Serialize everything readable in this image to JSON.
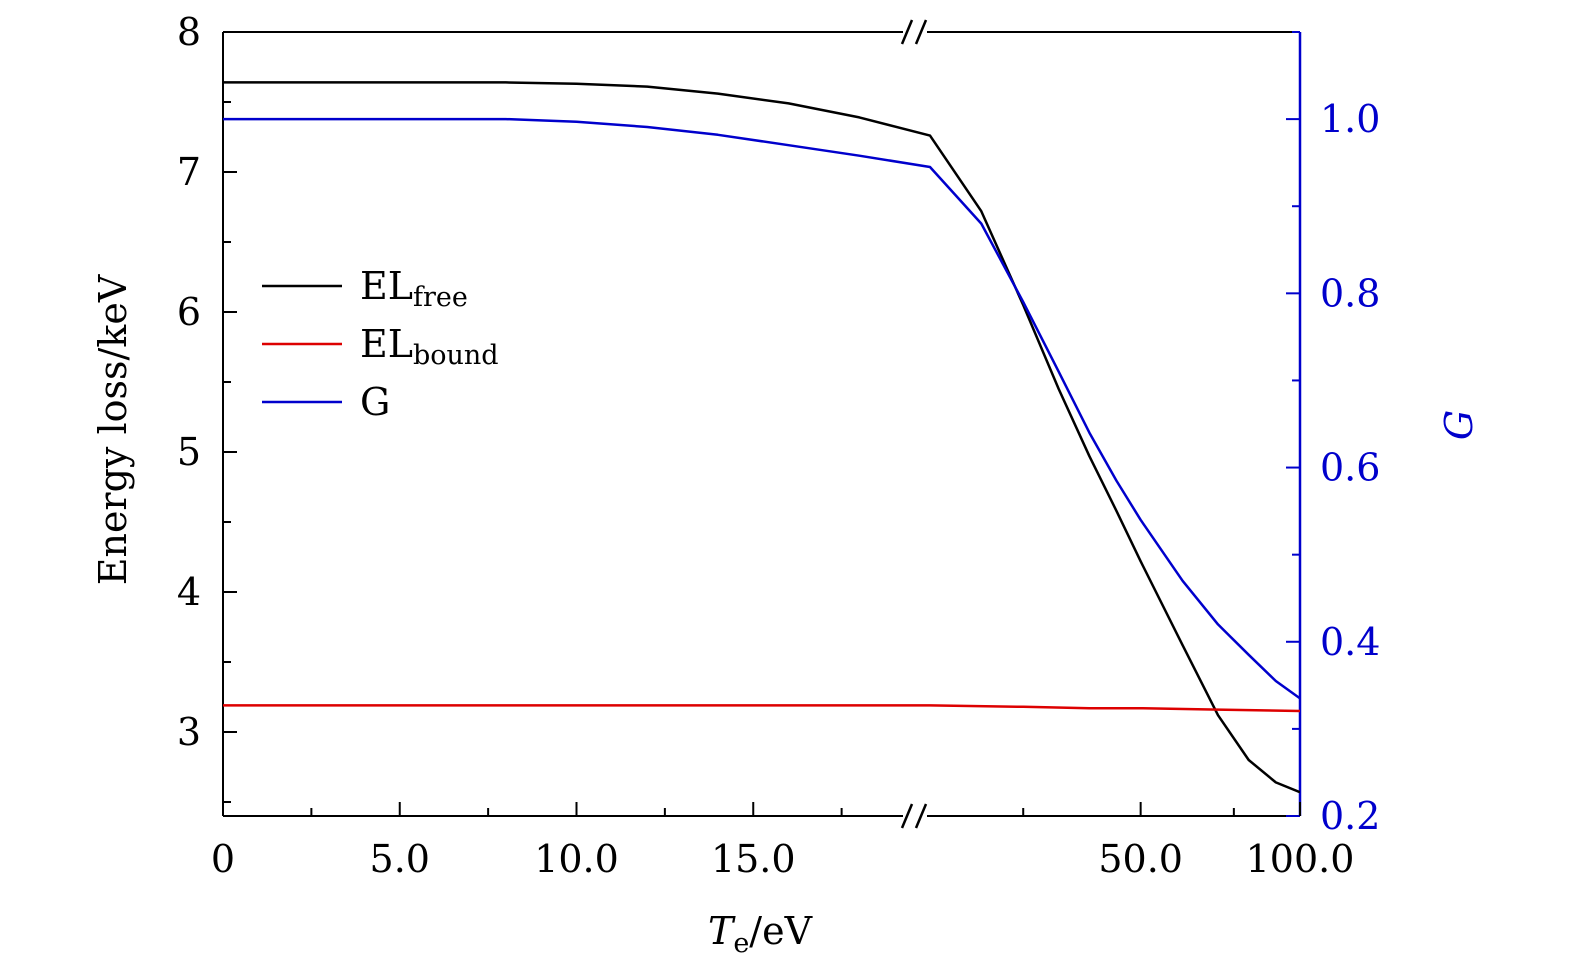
{
  "chart_data": {
    "type": "line",
    "xlabel": {
      "main": "T",
      "sub": "e",
      "unit": "/eV"
    },
    "ylabel_left": "Energy loss/keV",
    "ylabel_right": "G",
    "x_ticks": [
      {
        "value": 0,
        "label": "0"
      },
      {
        "value": 5,
        "label": "5.0"
      },
      {
        "value": 10,
        "label": "10.0"
      },
      {
        "value": 15,
        "label": "15.0"
      },
      {
        "value": 50,
        "label": "50.0"
      },
      {
        "value": 100,
        "label": "100.0"
      }
    ],
    "x_break": {
      "after": 20,
      "before": 20
    },
    "ylim_left": [
      2.4,
      8
    ],
    "yticks_left": [
      "3",
      "4",
      "5",
      "6",
      "7",
      "8"
    ],
    "ylim_right": [
      0.2,
      1.1
    ],
    "yticks_right": [
      "0.2",
      "0.4",
      "0.6",
      "0.8",
      "1.0"
    ],
    "legend_position": "upper-left",
    "series": [
      {
        "key": "EL_free",
        "name": "EL",
        "name_sub": "free",
        "color": "#000000",
        "axis": "left",
        "points": [
          [
            0,
            7.64
          ],
          [
            2,
            7.64
          ],
          [
            4,
            7.64
          ],
          [
            6,
            7.64
          ],
          [
            8,
            7.64
          ],
          [
            10,
            7.63
          ],
          [
            12,
            7.61
          ],
          [
            14,
            7.56
          ],
          [
            16,
            7.49
          ],
          [
            18,
            7.39
          ],
          [
            20,
            7.26
          ],
          [
            25,
            6.72
          ],
          [
            30,
            6.05
          ],
          [
            35,
            5.45
          ],
          [
            40,
            4.97
          ],
          [
            45,
            4.58
          ],
          [
            50,
            4.22
          ],
          [
            60,
            3.62
          ],
          [
            70,
            3.12
          ],
          [
            80,
            2.8
          ],
          [
            90,
            2.64
          ],
          [
            100,
            2.57
          ]
        ]
      },
      {
        "key": "EL_bound",
        "name": "EL",
        "name_sub": "bound",
        "color": "#dd0000",
        "axis": "left",
        "points": [
          [
            0,
            3.19
          ],
          [
            5,
            3.19
          ],
          [
            10,
            3.19
          ],
          [
            15,
            3.19
          ],
          [
            20,
            3.19
          ],
          [
            30,
            3.18
          ],
          [
            40,
            3.17
          ],
          [
            50,
            3.17
          ],
          [
            70,
            3.16
          ],
          [
            100,
            3.15
          ]
        ]
      },
      {
        "key": "G",
        "name": "G",
        "color": "#0000cc",
        "axis": "right",
        "points": [
          [
            0,
            1.0
          ],
          [
            2,
            1.0
          ],
          [
            4,
            1.0
          ],
          [
            6,
            1.0
          ],
          [
            8,
            1.0
          ],
          [
            10,
            0.997
          ],
          [
            12,
            0.991
          ],
          [
            14,
            0.982
          ],
          [
            16,
            0.97
          ],
          [
            18,
            0.958
          ],
          [
            20,
            0.945
          ],
          [
            25,
            0.88
          ],
          [
            30,
            0.79
          ],
          [
            35,
            0.71
          ],
          [
            40,
            0.64
          ],
          [
            45,
            0.585
          ],
          [
            50,
            0.54
          ],
          [
            60,
            0.47
          ],
          [
            70,
            0.42
          ],
          [
            80,
            0.385
          ],
          [
            90,
            0.355
          ],
          [
            100,
            0.335
          ]
        ]
      }
    ]
  }
}
